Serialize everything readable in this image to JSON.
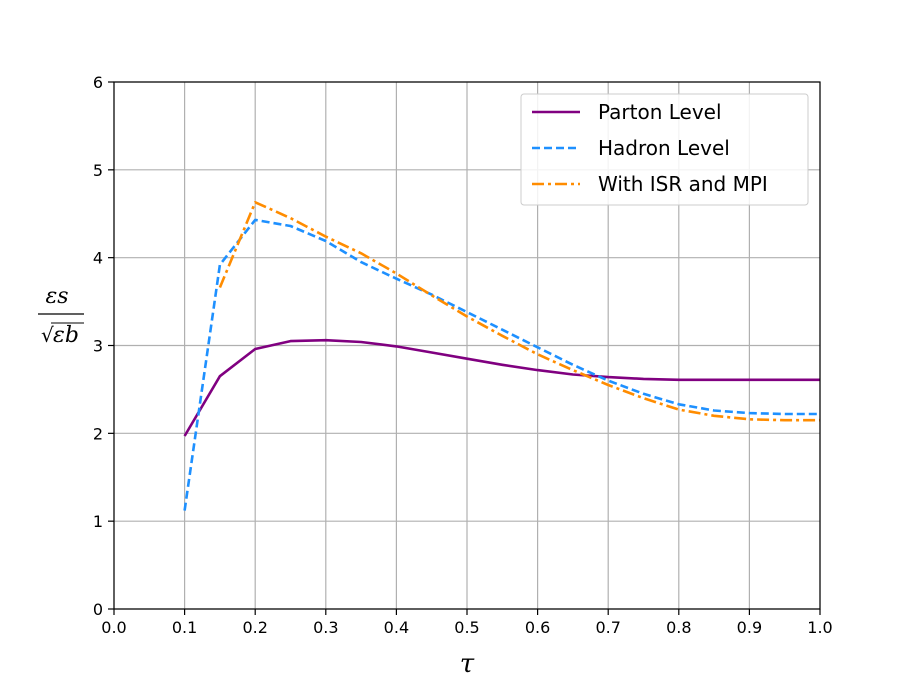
{
  "chart_data": {
    "type": "line",
    "title": "",
    "xlabel": "τ",
    "ylabel": {
      "numerator": "εs",
      "denominator": "εb",
      "sqrt_symbol": "√"
    },
    "xlim": [
      0.0,
      1.0
    ],
    "ylim": [
      0,
      6
    ],
    "xticks": [
      "0.0",
      "0.1",
      "0.2",
      "0.3",
      "0.4",
      "0.5",
      "0.6",
      "0.7",
      "0.8",
      "0.9",
      "1.0"
    ],
    "yticks": [
      "0",
      "1",
      "2",
      "3",
      "4",
      "5",
      "6"
    ],
    "grid": true,
    "legend_position": "top-right",
    "series": [
      {
        "name": "Parton Level",
        "color": "#800080",
        "style": "solid",
        "x": [
          0.1,
          0.15,
          0.2,
          0.25,
          0.3,
          0.35,
          0.4,
          0.45,
          0.5,
          0.55,
          0.6,
          0.65,
          0.7,
          0.75,
          0.8,
          0.85,
          0.9,
          0.95,
          1.0
        ],
        "y": [
          1.97,
          2.65,
          2.96,
          3.05,
          3.06,
          3.04,
          2.99,
          2.92,
          2.85,
          2.78,
          2.72,
          2.67,
          2.64,
          2.62,
          2.61,
          2.61,
          2.61,
          2.61,
          2.61
        ]
      },
      {
        "name": "Hadron Level",
        "color": "#1e90ff",
        "style": "dashed",
        "x": [
          0.1,
          0.15,
          0.2,
          0.25,
          0.3,
          0.35,
          0.4,
          0.45,
          0.5,
          0.55,
          0.6,
          0.65,
          0.7,
          0.75,
          0.8,
          0.85,
          0.9,
          0.95,
          1.0
        ],
        "y": [
          1.12,
          3.92,
          4.43,
          4.36,
          4.19,
          3.95,
          3.76,
          3.58,
          3.38,
          3.18,
          2.98,
          2.78,
          2.6,
          2.45,
          2.33,
          2.26,
          2.23,
          2.22,
          2.22
        ]
      },
      {
        "name": "With ISR and MPI",
        "color": "#ff8c00",
        "style": "dashdot",
        "x": [
          0.15,
          0.2,
          0.25,
          0.3,
          0.35,
          0.4,
          0.45,
          0.5,
          0.55,
          0.6,
          0.65,
          0.7,
          0.75,
          0.8,
          0.85,
          0.9,
          0.95,
          1.0
        ],
        "y": [
          3.66,
          4.63,
          4.45,
          4.24,
          4.05,
          3.82,
          3.57,
          3.33,
          3.11,
          2.9,
          2.72,
          2.55,
          2.4,
          2.27,
          2.2,
          2.16,
          2.15,
          2.15
        ]
      }
    ]
  }
}
